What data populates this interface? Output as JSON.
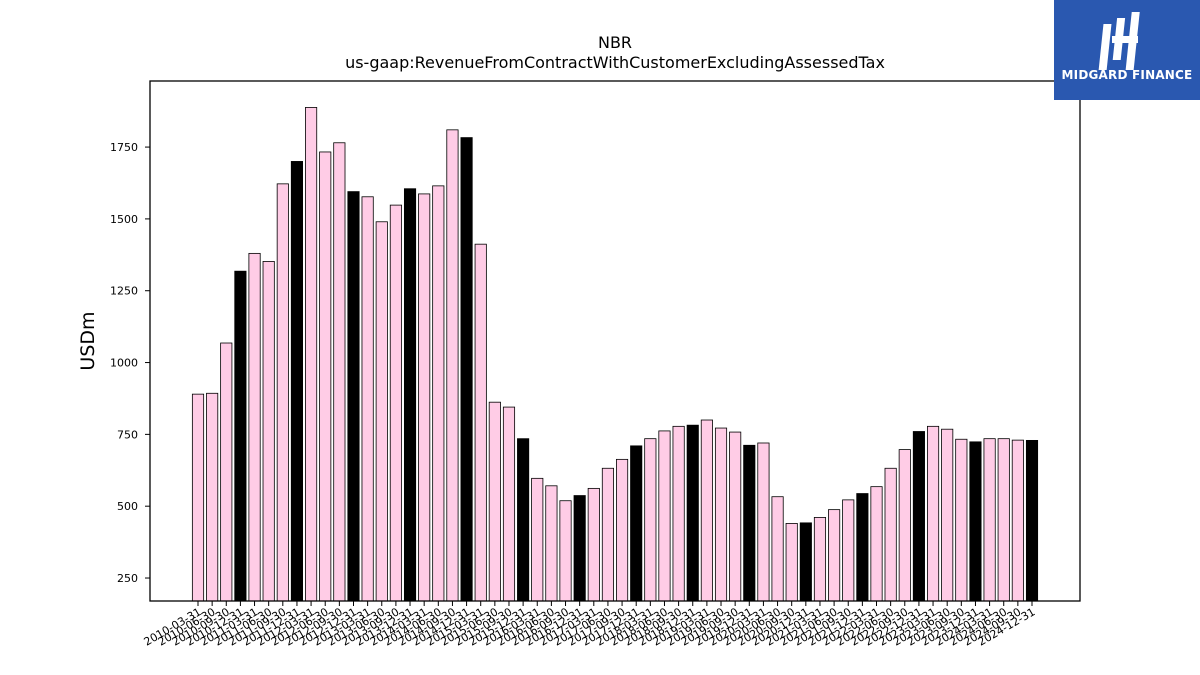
{
  "brand": {
    "name": "MIDGARD FINANCE",
    "background": "#2a58b0"
  },
  "chart_data": {
    "type": "bar",
    "title": "NBR",
    "subtitle": "us-gaap:RevenueFromContractWithCustomerExcludingAssessedTax",
    "ylabel": "USDm",
    "xlabel": "",
    "ylim": [
      170,
      1980
    ],
    "yticks": [
      250,
      500,
      750,
      1000,
      1250,
      1500,
      1750
    ],
    "grid": false,
    "colors": {
      "quarter": "#ffcce6",
      "fiscal_year_end": "#000000",
      "edge": "#000000"
    },
    "categories": [
      "2010-03-31",
      "2010-06-30",
      "2010-09-30",
      "2010-12-31",
      "2011-03-31",
      "2011-06-30",
      "2011-09-30",
      "2011-12-31",
      "2012-03-31",
      "2012-06-30",
      "2012-09-30",
      "2012-12-31",
      "2013-03-31",
      "2013-06-30",
      "2013-09-30",
      "2013-12-31",
      "2014-03-31",
      "2014-06-30",
      "2014-09-30",
      "2014-12-31",
      "2015-03-31",
      "2015-06-30",
      "2015-09-30",
      "2015-12-31",
      "2016-03-31",
      "2016-06-30",
      "2016-09-30",
      "2016-12-31",
      "2017-03-31",
      "2017-06-30",
      "2017-09-30",
      "2017-12-31",
      "2018-03-31",
      "2018-06-30",
      "2018-09-30",
      "2018-12-31",
      "2019-03-31",
      "2019-06-30",
      "2019-09-30",
      "2019-12-31",
      "2020-03-31",
      "2020-06-30",
      "2020-09-30",
      "2020-12-31",
      "2021-03-31",
      "2021-06-30",
      "2021-09-30",
      "2021-12-31",
      "2022-03-31",
      "2022-06-30",
      "2022-09-30",
      "2022-12-31",
      "2023-03-31",
      "2023-06-30",
      "2023-09-30",
      "2023-12-31",
      "2024-03-31",
      "2024-06-30",
      "2024-09-30",
      "2024-12-31"
    ],
    "values": [
      890,
      893,
      1068,
      1318,
      1380,
      1352,
      1622,
      1700,
      1888,
      1733,
      1765,
      1595,
      1577,
      1490,
      1548,
      1605,
      1587,
      1615,
      1810,
      1783,
      1412,
      862,
      845,
      735,
      597,
      571,
      519,
      537,
      562,
      632,
      663,
      710,
      735,
      762,
      778,
      782,
      800,
      772,
      758,
      712,
      720,
      533,
      440,
      442,
      461,
      488,
      522,
      544,
      568,
      632,
      697,
      760,
      778,
      768,
      733,
      724,
      735,
      735,
      730,
      729
    ],
    "highlight": [
      false,
      false,
      false,
      true,
      false,
      false,
      false,
      true,
      false,
      false,
      false,
      true,
      false,
      false,
      false,
      true,
      false,
      false,
      false,
      true,
      false,
      false,
      false,
      true,
      false,
      false,
      false,
      true,
      false,
      false,
      false,
      true,
      false,
      false,
      false,
      true,
      false,
      false,
      false,
      true,
      false,
      false,
      false,
      true,
      false,
      false,
      false,
      true,
      false,
      false,
      false,
      true,
      false,
      false,
      false,
      true,
      false,
      false,
      false,
      true
    ]
  }
}
